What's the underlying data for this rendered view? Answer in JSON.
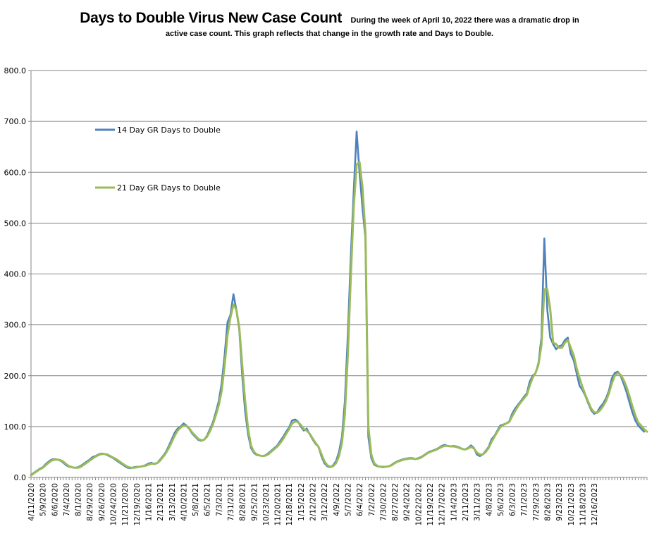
{
  "chart_data": {
    "type": "line",
    "title": "Days to Double Virus New Case Count",
    "subtitle": "During the week of April 10, 2022 there was a dramatic drop in active case count.  This graph reflects that change in the growth rate and Days to Double.",
    "subtitle_part1": "During the week of April 10, 2022 there was a dramatic drop in",
    "subtitle_part2": "active case count.  This graph reflects that change in the growth rate and Days to Double.",
    "xlabel": "",
    "ylabel": "",
    "ylim": [
      0,
      800
    ],
    "yticks": [
      "0.0",
      "100.0",
      "200.0",
      "300.0",
      "400.0",
      "500.0",
      "600.0",
      "700.0",
      "800.0"
    ],
    "grid": true,
    "legend_position": "upper-left inside plot",
    "x_tick_labels": [
      "4/11/2020",
      "5/9/2020",
      "6/6/2020",
      "7/4/2020",
      "8/1/2020",
      "8/29/2020",
      "9/26/2020",
      "10/24/2020",
      "11/21/2020",
      "12/19/2020",
      "1/16/2021",
      "2/13/2021",
      "3/13/2021",
      "4/10/2021",
      "5/8/2021",
      "6/5/2021",
      "7/3/2021",
      "7/31/2021",
      "8/28/2021",
      "9/25/2021",
      "10/23/2021",
      "11/20/2021",
      "12/18/2021",
      "1/15/2022",
      "2/12/2022",
      "3/12/2022",
      "4/9/2022",
      "5/7/2022",
      "6/4/2022",
      "7/2/2022",
      "7/30/2022",
      "8/27/2022",
      "9/24/2022",
      "10/22/2022",
      "11/19/2022",
      "12/17/2022",
      "1/14/2023",
      "2/11/2023",
      "3/11/2023",
      "4/8/2023",
      "5/6/2023",
      "6/3/2023",
      "7/1/2023",
      "7/29/2023",
      "8/26/2023",
      "9/23/2023",
      "10/21/2023",
      "11/18/2023",
      "12/16/2023"
    ],
    "x_tick_interval_weeks": 4,
    "series": [
      {
        "name": "14 Day GR Days to Double",
        "color": "#4F81BD",
        "values": [
          5,
          9,
          13,
          17,
          20,
          26,
          31,
          35,
          36,
          35,
          33,
          29,
          24,
          21,
          20,
          19,
          20,
          23,
          27,
          31,
          35,
          40,
          42,
          45,
          47,
          46,
          44,
          41,
          38,
          34,
          30,
          26,
          22,
          19,
          18,
          20,
          21,
          21,
          22,
          24,
          27,
          29,
          26,
          28,
          35,
          42,
          50,
          62,
          75,
          88,
          96,
          100,
          106,
          102,
          95,
          86,
          80,
          74,
          72,
          74,
          82,
          95,
          108,
          128,
          150,
          185,
          240,
          305,
          320,
          360,
          330,
          290,
          200,
          130,
          85,
          58,
          48,
          44,
          43,
          42,
          44,
          48,
          53,
          58,
          63,
          72,
          80,
          90,
          98,
          112,
          114,
          110,
          100,
          92,
          96,
          85,
          75,
          66,
          60,
          42,
          28,
          22,
          20,
          24,
          32,
          50,
          80,
          150,
          280,
          430,
          560,
          680,
          600,
          530,
          470,
          80,
          38,
          25,
          22,
          21,
          20,
          21,
          22,
          25,
          29,
          32,
          34,
          36,
          37,
          38,
          38,
          36,
          38,
          40,
          44,
          48,
          51,
          53,
          55,
          58,
          62,
          64,
          62,
          61,
          62,
          61,
          59,
          56,
          55,
          58,
          63,
          58,
          45,
          42,
          45,
          52,
          60,
          75,
          82,
          92,
          102,
          104,
          106,
          110,
          125,
          135,
          143,
          150,
          158,
          165,
          188,
          200,
          205,
          225,
          275,
          470,
          330,
          275,
          262,
          252,
          258,
          260,
          270,
          275,
          243,
          230,
          205,
          180,
          172,
          160,
          145,
          132,
          125,
          128,
          138,
          145,
          155,
          170,
          195,
          205,
          208,
          200,
          185,
          168,
          148,
          128,
          112,
          102,
          96,
          90
        ],
        "note": "weekly values, estimated from pixels"
      },
      {
        "name": "21 Day GR Days to Double",
        "color": "#9BBB59",
        "values": [
          4,
          8,
          12,
          16,
          19,
          24,
          29,
          33,
          35,
          35,
          34,
          31,
          26,
          22,
          20,
          19,
          19,
          21,
          25,
          29,
          33,
          37,
          41,
          44,
          46,
          46,
          45,
          42,
          39,
          36,
          32,
          28,
          24,
          21,
          19,
          19,
          20,
          21,
          22,
          23,
          25,
          27,
          27,
          28,
          33,
          40,
          48,
          58,
          70,
          82,
          92,
          98,
          102,
          101,
          96,
          88,
          82,
          76,
          73,
          74,
          80,
          91,
          104,
          122,
          142,
          170,
          220,
          280,
          315,
          340,
          330,
          295,
          220,
          150,
          95,
          63,
          50,
          45,
          43,
          42,
          43,
          46,
          51,
          56,
          61,
          68,
          76,
          86,
          95,
          106,
          110,
          109,
          103,
          95,
          92,
          86,
          77,
          68,
          60,
          46,
          32,
          24,
          21,
          22,
          28,
          42,
          68,
          125,
          240,
          390,
          530,
          615,
          620,
          570,
          480,
          100,
          45,
          28,
          23,
          21,
          21,
          21,
          22,
          24,
          28,
          31,
          33,
          35,
          36,
          37,
          37,
          36,
          37,
          39,
          43,
          47,
          50,
          52,
          54,
          57,
          60,
          62,
          62,
          61,
          61,
          60,
          58,
          56,
          55,
          57,
          60,
          57,
          49,
          45,
          45,
          50,
          58,
          70,
          80,
          90,
          99,
          103,
          106,
          109,
          120,
          130,
          140,
          148,
          155,
          162,
          180,
          196,
          205,
          222,
          260,
          370,
          370,
          330,
          265,
          262,
          255,
          255,
          265,
          270,
          255,
          240,
          215,
          195,
          178,
          162,
          148,
          135,
          128,
          127,
          132,
          140,
          150,
          165,
          185,
          200,
          205,
          202,
          192,
          178,
          160,
          140,
          122,
          108,
          102,
          95,
          90
        ]
      }
    ]
  },
  "legend": {
    "items": [
      {
        "label": "14 Day GR Days to Double",
        "color": "#4F81BD"
      },
      {
        "label": "21 Day GR Days to Double",
        "color": "#9BBB59"
      }
    ]
  }
}
